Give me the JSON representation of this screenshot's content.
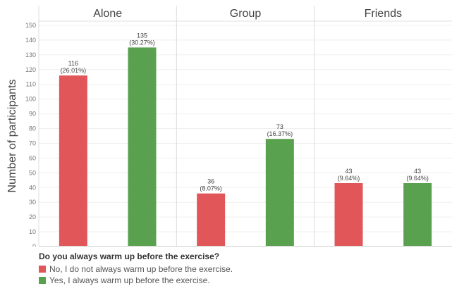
{
  "chart_data": {
    "type": "bar",
    "panels": [
      "Alone",
      "Group",
      "Friends"
    ],
    "ylabel": "Number of participants",
    "ylim": [
      0,
      150
    ],
    "yticks": [
      0,
      10,
      20,
      30,
      40,
      50,
      60,
      70,
      80,
      90,
      100,
      110,
      120,
      130,
      140,
      150
    ],
    "grid": true,
    "legend_position": "bottom-left",
    "legend_title": "Do you always warm up before the exercise?",
    "series": [
      {
        "name": "No, I do not always warm up before the exercise.",
        "color": "#e15759",
        "values": [
          116,
          36,
          43
        ],
        "labels": [
          "116",
          "36",
          "43"
        ],
        "percent_labels": [
          "(26.01%)",
          "(8.07%)",
          "(9.64%)"
        ]
      },
      {
        "name": "Yes, I always warm up before the exercise.",
        "color": "#59a14f",
        "values": [
          135,
          73,
          43
        ],
        "labels": [
          "135",
          "73",
          "43"
        ],
        "percent_labels": [
          "(30.27%)",
          "(16.37%)",
          "(9.64%)"
        ]
      }
    ]
  }
}
